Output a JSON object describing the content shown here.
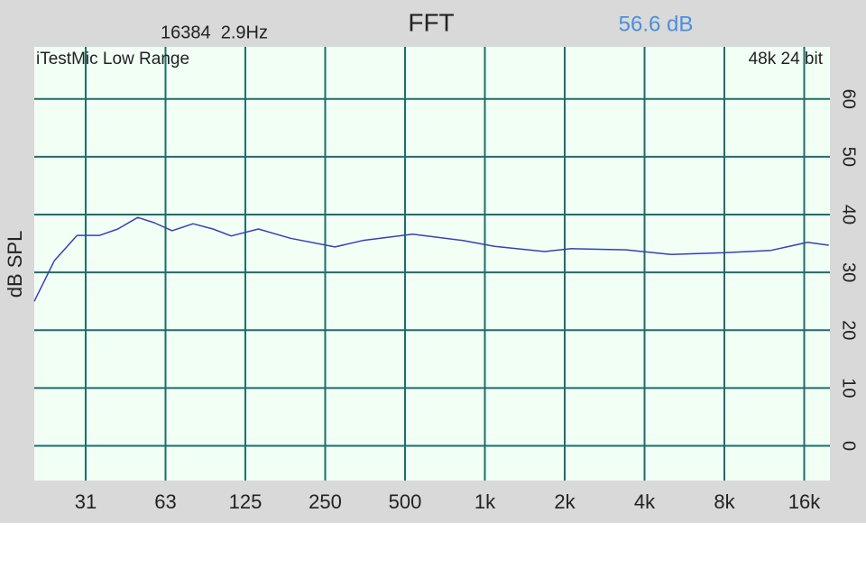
{
  "chart_data": {
    "type": "line",
    "title": "FFT",
    "resolution": "16384  2.9Hz",
    "level": "56.6 dB",
    "device": "iTestMic Low Range",
    "format": "48k 24 bit",
    "ylabel": "dB SPL",
    "xscale": "log",
    "grid": true,
    "color": "#3a3fb0",
    "xlim": [
      20,
      20000
    ],
    "xticks": [
      {
        "value": 31.25,
        "label": "31"
      },
      {
        "value": 62.5,
        "label": "63"
      },
      125,
      250,
      500,
      {
        "value": 1000,
        "label": "1k"
      },
      {
        "value": 2000,
        "label": "2k"
      },
      {
        "value": 4000,
        "label": "4k"
      },
      {
        "value": 8000,
        "label": "8k"
      },
      {
        "value": 16000,
        "label": "16k"
      }
    ],
    "ylim": [
      -6,
      69
    ],
    "yticks": [
      0,
      10,
      20,
      30,
      40,
      50,
      60
    ],
    "x": [
      20,
      23.8,
      29,
      35.3,
      41.3,
      49.1,
      56.6,
      66.2,
      79.4,
      94.4,
      110.6,
      140,
      185,
      272,
      346,
      534,
      826,
      1088,
      1680,
      2120,
      3400,
      5040,
      8100,
      12000,
      16460,
      19800
    ],
    "values": [
      25.0,
      32.0,
      36.4,
      36.4,
      37.5,
      39.5,
      38.6,
      37.2,
      38.4,
      37.5,
      36.3,
      37.5,
      35.9,
      34.4,
      35.5,
      36.6,
      35.5,
      34.5,
      33.6,
      34.1,
      33.9,
      33.1,
      33.4,
      33.8,
      35.2,
      34.7
    ]
  }
}
